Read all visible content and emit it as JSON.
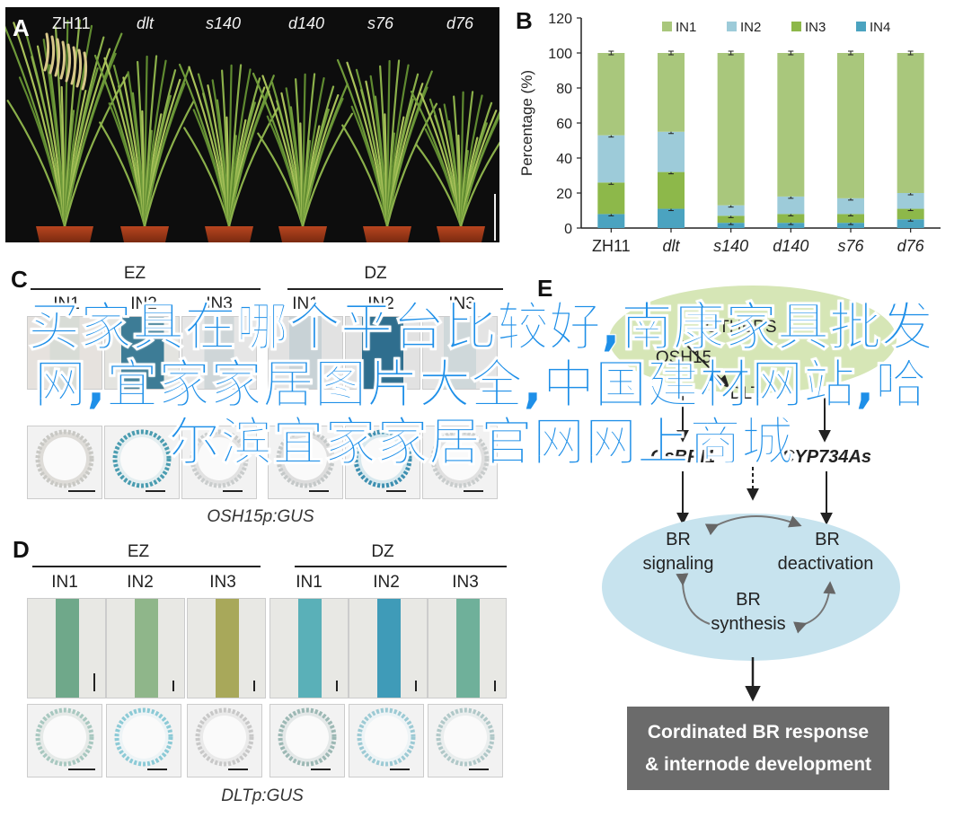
{
  "panels": {
    "a": "A",
    "b": "B",
    "c": "C",
    "d": "D",
    "e": "E"
  },
  "panel_a": {
    "genotypes": [
      "ZH11",
      "dlt",
      "s140",
      "d140",
      "s76",
      "d76"
    ]
  },
  "chart_data": {
    "type": "bar",
    "stacked": true,
    "categories": [
      "ZH11",
      "dlt",
      "s140",
      "d140",
      "s76",
      "d76"
    ],
    "ylabel": "Percentage (%)",
    "ylim": [
      0,
      120
    ],
    "yticks": [
      0,
      20,
      40,
      60,
      80,
      100,
      120
    ],
    "legend_position": "top",
    "grid": false,
    "series": [
      {
        "name": "IN4",
        "color": "#4ba3c0",
        "values": [
          8,
          11,
          3,
          3,
          3,
          5
        ]
      },
      {
        "name": "IN3",
        "color": "#8db84a",
        "values": [
          18,
          21,
          4,
          5,
          5,
          6
        ]
      },
      {
        "name": "IN2",
        "color": "#9dcbd9",
        "values": [
          27,
          23,
          6,
          10,
          9,
          9
        ]
      },
      {
        "name": "IN1",
        "color": "#a9c77c",
        "values": [
          47,
          45,
          87,
          82,
          83,
          80
        ]
      }
    ]
  },
  "panel_c": {
    "group_left": "EZ",
    "group_right": "DZ",
    "cols": [
      "IN1",
      "IN2",
      "IN3",
      "IN1",
      "IN2",
      "IN3"
    ],
    "caption": "OSH15p:GUS"
  },
  "panel_d": {
    "group_left": "EZ",
    "group_right": "DZ",
    "cols": [
      "IN1",
      "IN2",
      "IN3",
      "IN1",
      "IN2",
      "IN3"
    ],
    "caption": "DLTp:GUS",
    "stem_colors": [
      "#6fa88a",
      "#8fb68a",
      "#a8a85a",
      "#5ab0b8",
      "#3f9bb8",
      "#6fb09a"
    ]
  },
  "panel_e": {
    "others": "OTHERS",
    "osh15": "OSH15",
    "dlt": "DLT",
    "osbri": "OsBRI1",
    "cyp": "CYP734As",
    "br_signaling": [
      "BR",
      "signaling"
    ],
    "br_deactivation": [
      "BR",
      "deactivation"
    ],
    "br_synthesis": [
      "BR",
      "synthesis"
    ],
    "response": [
      "Cordinated BR response",
      "& internode development"
    ]
  },
  "overlay_text": "买家具在哪个平台比较好,南康家具批发网,宜家家居图片大全,中国建材网站,哈尔滨宜家家居官网网上商城"
}
